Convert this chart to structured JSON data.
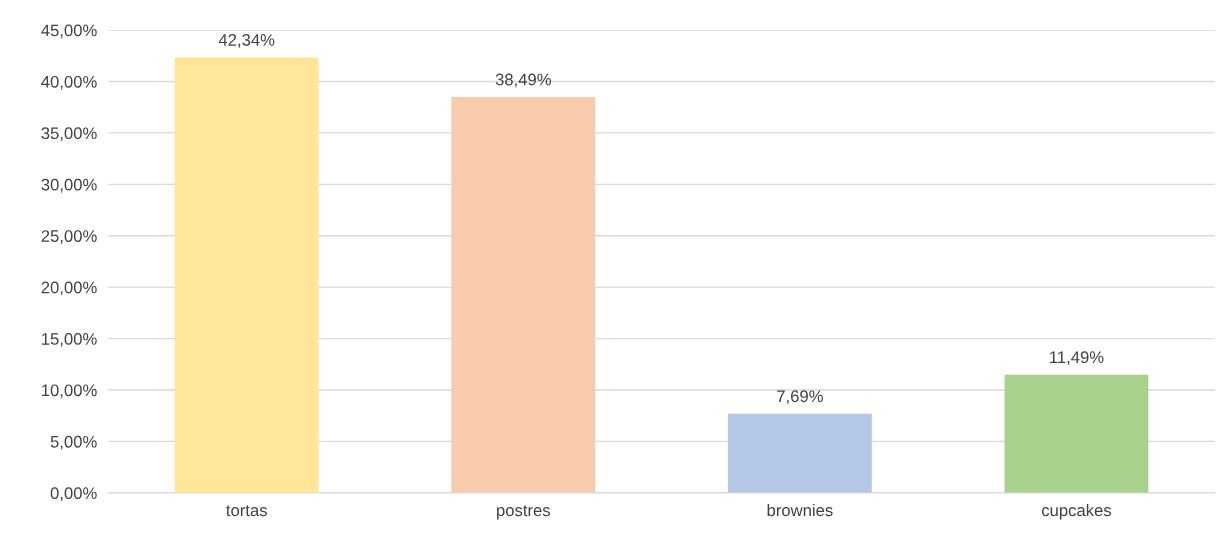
{
  "chart_data": {
    "type": "bar",
    "categories": [
      "tortas",
      "postres",
      "brownies",
      "cupcakes"
    ],
    "values": [
      42.34,
      38.49,
      7.69,
      11.49
    ],
    "colors": [
      "#ffe699",
      "#f8cbad",
      "#b4c7e7",
      "#a9d18e"
    ],
    "value_labels": [
      "42,34%",
      "38,49%",
      "7,69%",
      "11,49%"
    ],
    "ylim": [
      0,
      45
    ],
    "yticks": [
      {
        "value": 0,
        "label": "0,00%"
      },
      {
        "value": 5,
        "label": "5,00%"
      },
      {
        "value": 10,
        "label": "10,00%"
      },
      {
        "value": 15,
        "label": "15,00%"
      },
      {
        "value": 20,
        "label": "20,00%"
      },
      {
        "value": 25,
        "label": "25,00%"
      },
      {
        "value": 30,
        "label": "30,00%"
      },
      {
        "value": 35,
        "label": "35,00%"
      },
      {
        "value": 40,
        "label": "40,00%"
      },
      {
        "value": 45,
        "label": "45,00%"
      }
    ],
    "grid": "y"
  }
}
